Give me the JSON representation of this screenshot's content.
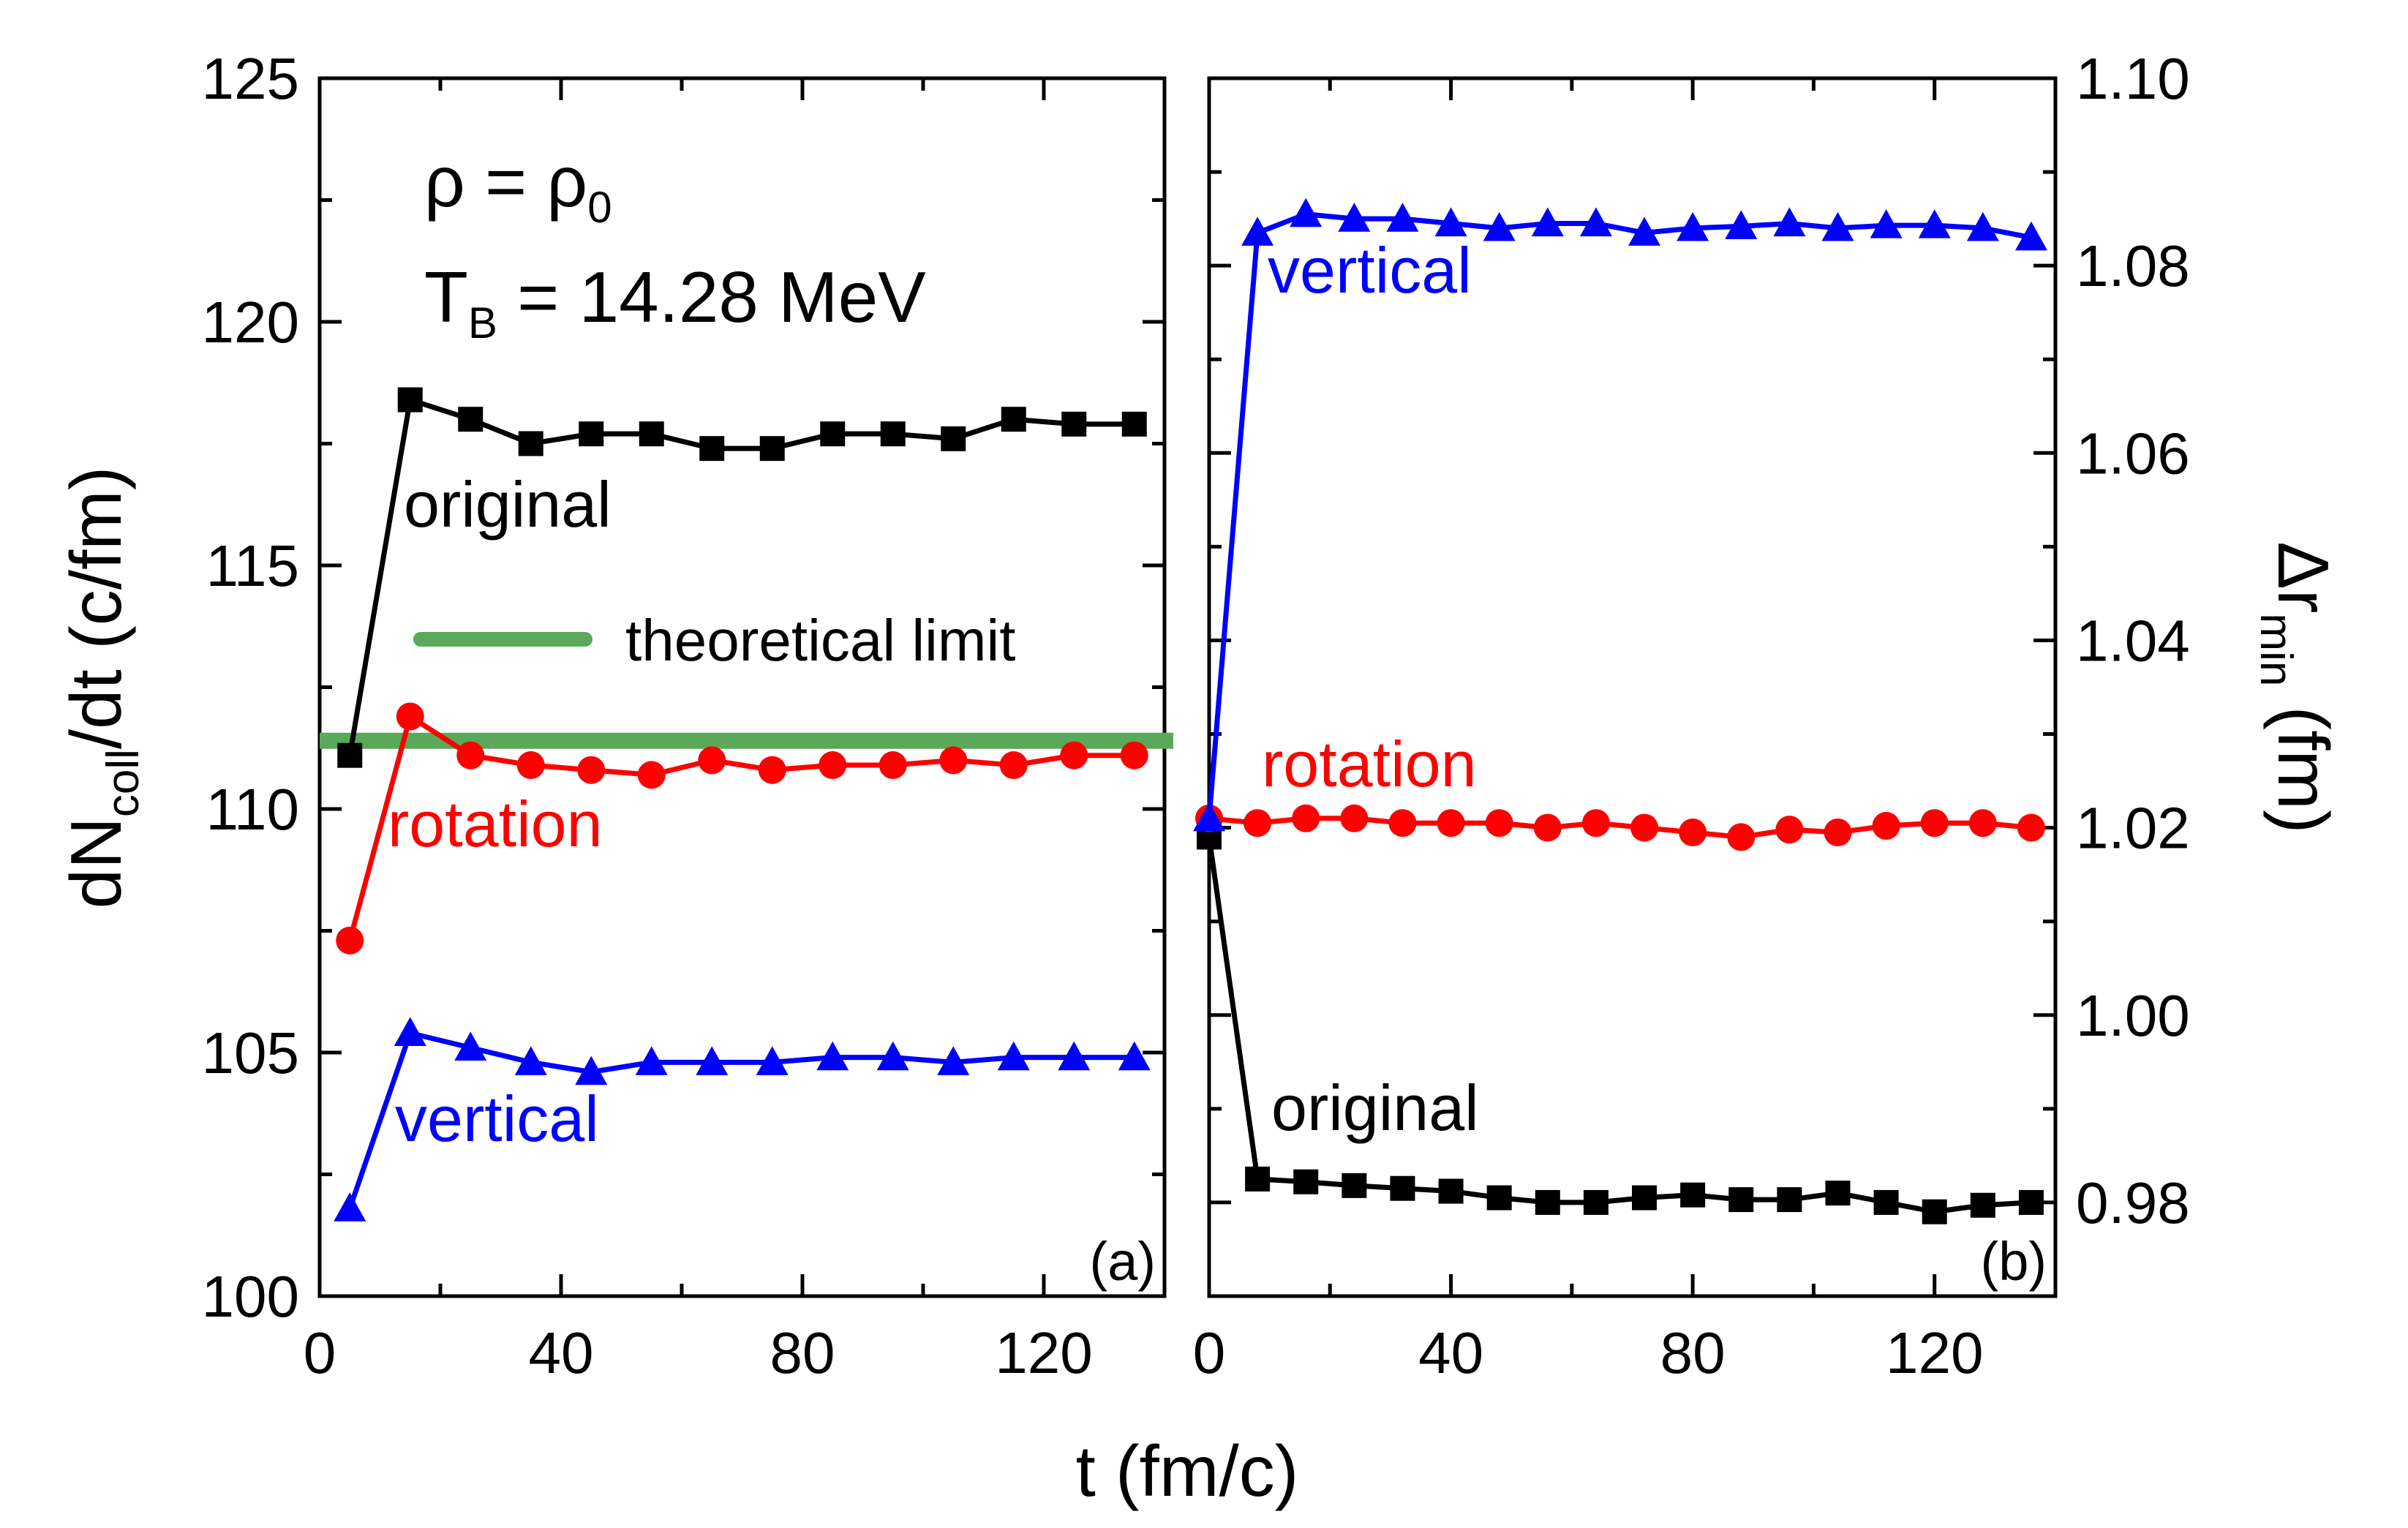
{
  "chart_data": [
    {
      "panel": "a",
      "type": "line",
      "panel_label": "(a)",
      "xlabel": "t (fm/c)",
      "ylabel": {
        "main": "dN",
        "sub": "coll",
        "rest": "/dt (c/fm)"
      },
      "xlim": [
        0,
        140
      ],
      "ylim": [
        100,
        125
      ],
      "xticks": [
        0,
        40,
        80,
        120
      ],
      "yticks": [
        100,
        105,
        110,
        115,
        120,
        125
      ],
      "annotations": {
        "density": {
          "main": "ρ = ρ",
          "sub": "0"
        },
        "temperature": {
          "main": "T",
          "sub": "B",
          "rest": " = 14.28 MeV"
        }
      },
      "legend": {
        "label": "theoretical limit",
        "color": "#5aa85a"
      },
      "reference_line": {
        "y": 111.4,
        "color": "#5aa85a"
      },
      "series": [
        {
          "name": "original",
          "color": "#000000",
          "marker": "square",
          "x": [
            5,
            15,
            25,
            35,
            45,
            55,
            65,
            75,
            85,
            95,
            105,
            115,
            125,
            135
          ],
          "values": [
            111.1,
            118.4,
            118.0,
            117.5,
            117.7,
            117.7,
            117.4,
            117.4,
            117.7,
            117.7,
            117.6,
            118.0,
            117.9,
            117.9
          ]
        },
        {
          "name": "rotation",
          "color": "#ff0000",
          "marker": "circle",
          "x": [
            5,
            15,
            25,
            35,
            45,
            55,
            65,
            75,
            85,
            95,
            105,
            115,
            125,
            135
          ],
          "values": [
            107.3,
            111.9,
            111.1,
            110.9,
            110.8,
            110.7,
            111.0,
            110.8,
            110.9,
            110.9,
            111.0,
            110.9,
            111.1,
            111.1
          ]
        },
        {
          "name": "vertical",
          "color": "#0000ff",
          "marker": "triangle",
          "x": [
            5,
            15,
            25,
            35,
            45,
            55,
            65,
            75,
            85,
            95,
            105,
            115,
            125,
            135
          ],
          "values": [
            101.8,
            105.4,
            105.1,
            104.8,
            104.6,
            104.8,
            104.8,
            104.8,
            104.9,
            104.9,
            104.8,
            104.9,
            104.9,
            104.9
          ]
        }
      ]
    },
    {
      "panel": "b",
      "type": "line",
      "panel_label": "(b)",
      "xlabel": "",
      "ylabel": {
        "main": "Δr",
        "sub": "min",
        "rest": " (fm)"
      },
      "xlim": [
        0,
        140
      ],
      "ylim": [
        0.97,
        1.1
      ],
      "xticks": [
        0,
        40,
        80,
        120
      ],
      "yticks": [
        0.98,
        1.0,
        1.02,
        1.04,
        1.06,
        1.08,
        1.1
      ],
      "ytick_labels": [
        "0.98",
        "1.00",
        "1.02",
        "1.04",
        "1.06",
        "1.08",
        "1.10"
      ],
      "series": [
        {
          "name": "original",
          "color": "#000000",
          "marker": "square",
          "x": [
            0,
            8,
            16,
            24,
            32,
            40,
            48,
            56,
            64,
            72,
            80,
            88,
            96,
            104,
            112,
            120,
            128,
            136
          ],
          "values": [
            1.019,
            0.9825,
            0.9822,
            0.9818,
            0.9815,
            0.9812,
            0.9805,
            0.98,
            0.98,
            0.9805,
            0.9808,
            0.9803,
            0.9803,
            0.981,
            0.98,
            0.979,
            0.9797,
            0.98
          ]
        },
        {
          "name": "rotation",
          "color": "#ff0000",
          "marker": "circle",
          "x": [
            0,
            8,
            16,
            24,
            32,
            40,
            48,
            56,
            64,
            72,
            80,
            88,
            96,
            104,
            112,
            120,
            128,
            136
          ],
          "values": [
            1.021,
            1.0205,
            1.021,
            1.021,
            1.0205,
            1.0205,
            1.0205,
            1.02,
            1.0205,
            1.02,
            1.0195,
            1.019,
            1.0198,
            1.0195,
            1.0202,
            1.0205,
            1.0205,
            1.02
          ]
        },
        {
          "name": "vertical",
          "color": "#0000ff",
          "marker": "triangle",
          "x": [
            0,
            8,
            16,
            24,
            32,
            40,
            48,
            56,
            64,
            72,
            80,
            88,
            96,
            104,
            112,
            120,
            128,
            136
          ],
          "values": [
            1.021,
            1.0835,
            1.0855,
            1.085,
            1.085,
            1.0845,
            1.084,
            1.0845,
            1.0845,
            1.0835,
            1.084,
            1.0842,
            1.0845,
            1.084,
            1.0843,
            1.0843,
            1.084,
            1.083
          ]
        }
      ]
    }
  ]
}
